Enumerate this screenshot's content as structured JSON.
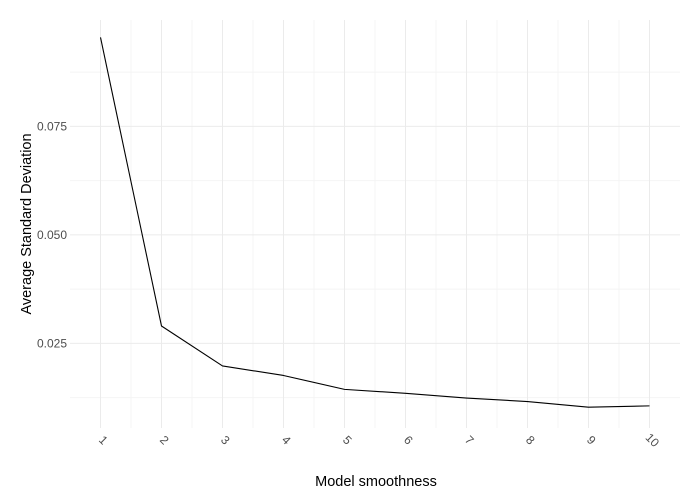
{
  "chart_data": {
    "type": "line",
    "title": "",
    "xlabel": "Model smoothness",
    "ylabel": "Average Standard Deviation",
    "x": [
      1,
      2,
      3,
      4,
      5,
      6,
      7,
      8,
      9,
      10
    ],
    "x_tick_labels": [
      "1",
      "2",
      "3",
      "4",
      "5",
      "6",
      "7",
      "8",
      "9",
      "10"
    ],
    "series": [
      {
        "values": [
          0.0955,
          0.029,
          0.0198,
          0.0176,
          0.0144,
          0.0135,
          0.0124,
          0.0116,
          0.0103,
          0.0106
        ]
      }
    ],
    "y_ticks": [
      0.025,
      0.05,
      0.075
    ],
    "y_tick_labels": [
      "0.025",
      "0.050",
      "0.075"
    ],
    "ylim": [
      0.0055,
      0.0995
    ],
    "xlim": [
      0.5,
      10.5
    ],
    "grid": true,
    "legend": "none",
    "colors": {
      "line": "#000000",
      "grid_major": "#ebebeb",
      "grid_minor": "#f4f4f4",
      "background": "#ffffff"
    }
  }
}
